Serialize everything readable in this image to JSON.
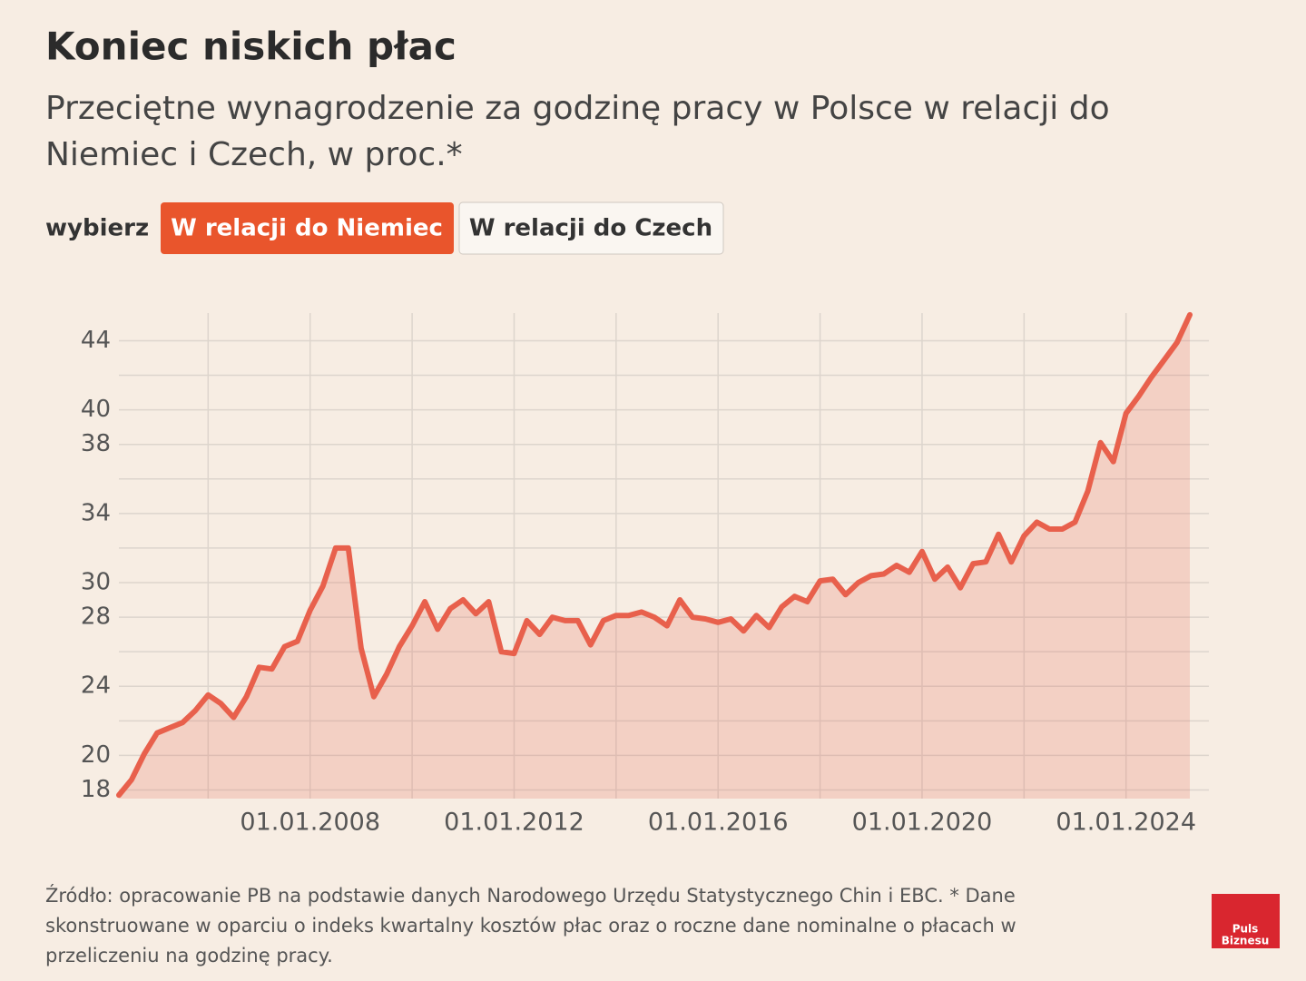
{
  "chart_data": {
    "type": "area",
    "title": "Koniec niskich płac",
    "subtitle": [
      "Przeciętne wynagrodzenie za godzinę pracy w Polsce w relacji do",
      "Niemiec i Czech, w proc.*"
    ],
    "color": "#e8604c",
    "x": [
      "01.04.2004",
      "01.07.2004",
      "01.10.2004",
      "01.01.2005",
      "01.04.2005",
      "01.07.2005",
      "01.10.2005",
      "01.01.2006",
      "01.04.2006",
      "01.07.2006",
      "01.10.2006",
      "01.01.2007",
      "01.04.2007",
      "01.07.2007",
      "01.10.2007",
      "01.01.2008",
      "01.04.2008",
      "01.07.2008",
      "01.10.2008",
      "01.01.2009",
      "01.04.2009",
      "01.07.2009",
      "01.10.2009",
      "01.01.2010",
      "01.04.2010",
      "01.07.2010",
      "01.10.2010",
      "01.01.2011",
      "01.04.2011",
      "01.07.2011",
      "01.10.2011",
      "01.01.2012",
      "01.04.2012",
      "01.07.2012",
      "01.10.2012",
      "01.01.2013",
      "01.04.2013",
      "01.07.2013",
      "01.10.2013",
      "01.01.2014",
      "01.04.2014",
      "01.07.2014",
      "01.10.2014",
      "01.01.2015",
      "01.04.2015",
      "01.07.2015",
      "01.10.2015",
      "01.01.2016",
      "01.04.2016",
      "01.07.2016",
      "01.10.2016",
      "01.01.2017",
      "01.04.2017",
      "01.07.2017",
      "01.10.2017",
      "01.01.2018",
      "01.04.2018",
      "01.07.2018",
      "01.10.2018",
      "01.01.2019",
      "01.04.2019",
      "01.07.2019",
      "01.10.2019",
      "01.01.2020",
      "01.04.2020",
      "01.07.2020",
      "01.10.2020",
      "01.01.2021",
      "01.04.2021",
      "01.07.2021",
      "01.10.2021",
      "01.01.2022",
      "01.04.2022",
      "01.07.2022",
      "01.10.2022",
      "01.01.2023",
      "01.04.2023",
      "01.07.2023",
      "01.10.2023",
      "01.01.2024",
      "01.04.2024",
      "01.07.2024",
      "01.10.2024",
      "01.01.2025",
      "01.04.2025"
    ],
    "values": [
      17.7,
      18.6,
      20.1,
      21.3,
      21.6,
      21.9,
      22.6,
      23.5,
      23.0,
      22.2,
      23.4,
      25.1,
      25.0,
      26.3,
      26.6,
      28.4,
      29.8,
      32.0,
      32.0,
      26.2,
      23.4,
      24.7,
      26.3,
      27.5,
      28.9,
      27.3,
      28.5,
      29.0,
      28.2,
      28.9,
      26.0,
      25.9,
      27.8,
      27.0,
      28.0,
      27.8,
      27.8,
      26.4,
      27.8,
      28.1,
      28.1,
      28.3,
      28.0,
      27.5,
      29.0,
      28.0,
      27.9,
      27.7,
      27.9,
      27.2,
      28.1,
      27.4,
      28.6,
      29.2,
      28.9,
      30.1,
      30.2,
      29.3,
      30.0,
      30.4,
      30.5,
      31.0,
      30.6,
      31.8,
      30.2,
      30.9,
      29.7,
      31.1,
      31.2,
      32.8,
      31.2,
      32.7,
      33.5,
      33.1,
      33.1,
      33.5,
      35.3,
      38.1,
      37.0,
      39.8,
      40.8,
      41.9,
      42.9,
      43.9,
      45.5
    ],
    "xlim": [
      "01.04.2004",
      "01.07.2025"
    ],
    "xticks": [
      "01.01.2008",
      "01.01.2012",
      "01.01.2016",
      "01.01.2020",
      "01.01.2024"
    ],
    "xgrid_lines": [
      "01.01.2006",
      "01.01.2008",
      "01.01.2010",
      "01.01.2012",
      "01.01.2014",
      "01.01.2016",
      "01.01.2018",
      "01.01.2020",
      "01.01.2022",
      "01.01.2024"
    ],
    "ylim": [
      17.5,
      45.6
    ],
    "yticks": [
      18,
      20,
      24,
      28,
      30,
      34,
      38,
      40,
      44
    ],
    "ygrid_lines": [
      18,
      20,
      22,
      24,
      26,
      28,
      30,
      32,
      34,
      36,
      38,
      40,
      42,
      44
    ],
    "grid": true
  },
  "controls": {
    "label": "wybierz",
    "options": [
      "W relacji do Niemiec",
      "W relacji do Czech"
    ]
  },
  "footer": [
    "Źródło: opracowanie PB na podstawie danych Narodowego Urzędu Statystycznego Chin i EBC. * Dane",
    "skonstruowane w oparciu o indeks kwartalny kosztów płac oraz o roczne dane nominalne o płacach w",
    "przeliczeniu na godzinę pracy."
  ],
  "logo": [
    "Puls",
    "Biznesu"
  ]
}
